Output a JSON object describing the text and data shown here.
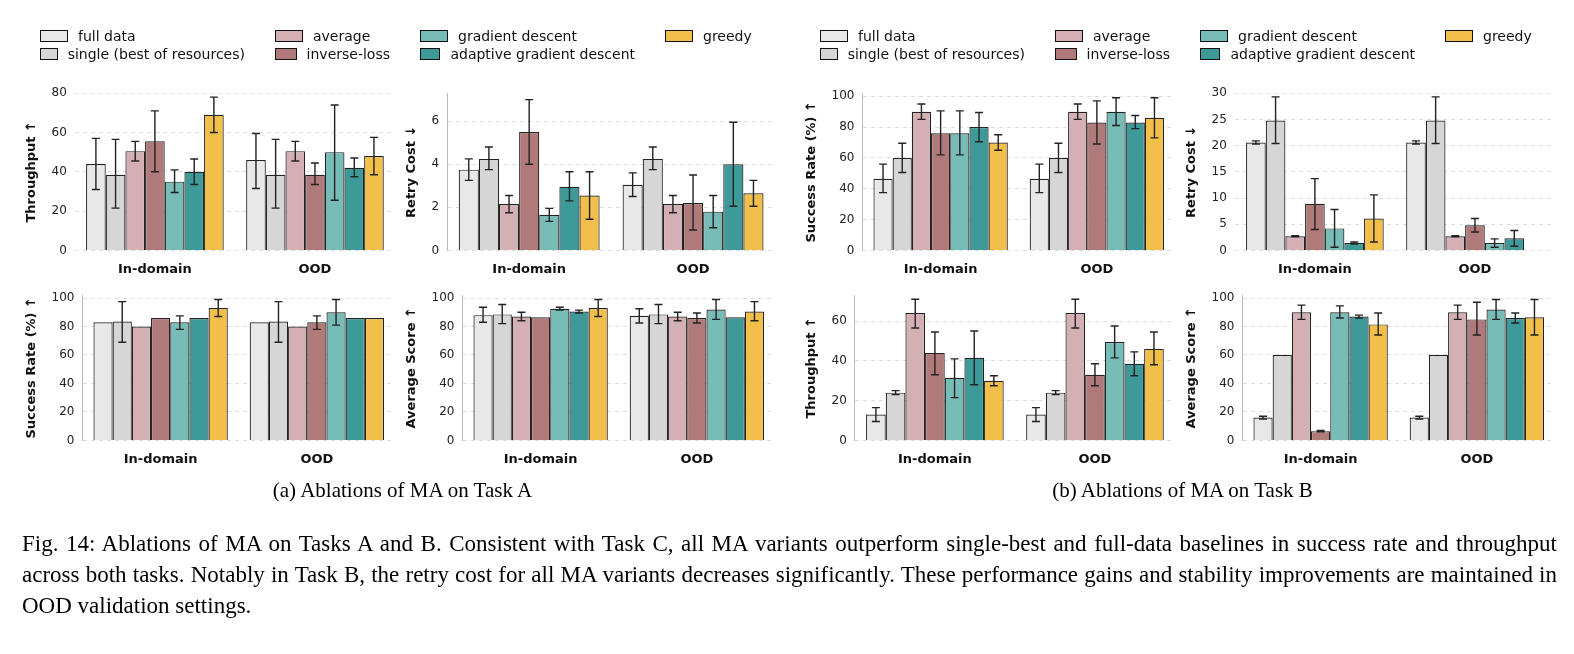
{
  "chart_data": [
    {
      "type": "bar",
      "ylabel": "Throughput ↑",
      "categories": [
        "In-domain",
        "OOD"
      ],
      "ylim": [
        0,
        80
      ],
      "yticks": [
        0,
        20,
        40,
        60,
        80
      ],
      "grid": "y",
      "legend": "top",
      "series": [
        {
          "name": "full data",
          "color": "#e8e8e8",
          "values": [
            44,
            46
          ],
          "errors": [
            [
              31,
              57
            ],
            [
              31.5,
              59.5
            ]
          ]
        },
        {
          "name": "single (best of resources)",
          "color": "#d6d6d6",
          "values": [
            38.5,
            38.5
          ],
          "errors": [
            [
              21.5,
              56.5
            ],
            [
              21.5,
              56.5
            ]
          ]
        },
        {
          "name": "average",
          "color": "#d4b0b4",
          "values": [
            50.5,
            50.5
          ],
          "errors": [
            [
              45.5,
              55.5
            ],
            [
              45.5,
              55.5
            ]
          ]
        },
        {
          "name": "inverse-loss",
          "color": "#b07a7a",
          "values": [
            55.5,
            38.5
          ],
          "errors": [
            [
              40,
              71
            ],
            [
              33.5,
              44.5
            ]
          ]
        },
        {
          "name": "gradient descent",
          "color": "#78bcb8",
          "values": [
            35,
            50
          ],
          "errors": [
            [
              29.5,
              41
            ],
            [
              25.5,
              74
            ]
          ]
        },
        {
          "name": "adaptive gradient descent",
          "color": "#3d9a98",
          "values": [
            40,
            42
          ],
          "errors": [
            [
              33.5,
              46.5
            ],
            [
              37.5,
              47
            ]
          ]
        },
        {
          "name": "greedy",
          "color": "#f2c04a",
          "values": [
            69,
            48
          ],
          "errors": [
            [
              60,
              78
            ],
            [
              38.5,
              57.5
            ]
          ]
        }
      ]
    },
    {
      "type": "bar",
      "ylabel": "Retry Cost ↓",
      "categories": [
        "In-domain",
        "OOD"
      ],
      "ylim": [
        0,
        7.3
      ],
      "yticks": [
        0,
        2,
        4,
        6
      ],
      "grid": "y",
      "series": [
        {
          "color": "#e8e8e8",
          "values": [
            3.75,
            3.05
          ],
          "errors": [
            [
              3.25,
              4.25
            ],
            [
              2.5,
              3.6
            ]
          ]
        },
        {
          "color": "#d6d6d6",
          "values": [
            4.25,
            4.25
          ],
          "errors": [
            [
              3.75,
              4.8
            ],
            [
              3.75,
              4.8
            ]
          ]
        },
        {
          "color": "#d4b0b4",
          "values": [
            2.15,
            2.15
          ],
          "errors": [
            [
              1.75,
              2.55
            ],
            [
              1.75,
              2.55
            ]
          ]
        },
        {
          "color": "#b07a7a",
          "values": [
            5.5,
            2.2
          ],
          "errors": [
            [
              4,
              7
            ],
            [
              0.95,
              3.5
            ]
          ]
        },
        {
          "color": "#78bcb8",
          "values": [
            1.65,
            1.8
          ],
          "errors": [
            [
              1.35,
              1.95
            ],
            [
              1.05,
              2.55
            ]
          ]
        },
        {
          "color": "#3d9a98",
          "values": [
            2.95,
            4
          ],
          "errors": [
            [
              2.3,
              3.65
            ],
            [
              2.05,
              5.95
            ]
          ]
        },
        {
          "color": "#f2c04a",
          "values": [
            2.55,
            2.65
          ],
          "errors": [
            [
              1.45,
              3.65
            ],
            [
              2.05,
              3.25
            ]
          ]
        }
      ]
    },
    {
      "type": "bar",
      "ylabel": "Success Rate (%) ↑",
      "categories": [
        "In-domain",
        "OOD"
      ],
      "ylim": [
        0,
        102
      ],
      "yticks": [
        0,
        20,
        40,
        60,
        80,
        100
      ],
      "grid": "y",
      "annotations": [
        "(a) Ablations of MA on Task A"
      ],
      "series": [
        {
          "color": "#e8e8e8",
          "values": [
            83,
            83
          ],
          "errors": [
            null,
            null
          ]
        },
        {
          "color": "#d6d6d6",
          "values": [
            83.5,
            83.5
          ],
          "errors": [
            [
              69,
              97.5
            ],
            [
              69,
              97.5
            ]
          ]
        },
        {
          "color": "#d4b0b4",
          "values": [
            80,
            80
          ],
          "errors": [
            null,
            null
          ]
        },
        {
          "color": "#b07a7a",
          "values": [
            86,
            83
          ],
          "errors": [
            null,
            [
              78,
              87.5
            ]
          ]
        },
        {
          "color": "#78bcb8",
          "values": [
            83,
            90
          ],
          "errors": [
            [
              78,
              87.5
            ],
            [
              81,
              99
            ]
          ]
        },
        {
          "color": "#3d9a98",
          "values": [
            86,
            86
          ],
          "errors": [
            null,
            null
          ]
        },
        {
          "color": "#f2c04a",
          "values": [
            93,
            86
          ],
          "errors": [
            [
              87,
              99
            ],
            null
          ]
        }
      ]
    },
    {
      "type": "bar",
      "ylabel": "Average Score ↑",
      "categories": [
        "In-domain",
        "OOD"
      ],
      "ylim": [
        0,
        102
      ],
      "yticks": [
        0,
        20,
        40,
        60,
        80,
        100
      ],
      "grid": "y",
      "series": [
        {
          "color": "#e8e8e8",
          "values": [
            88,
            87.5
          ],
          "errors": [
            [
              83,
              93.5
            ],
            [
              82.5,
              92.5
            ]
          ]
        },
        {
          "color": "#d6d6d6",
          "values": [
            88.5,
            88.5
          ],
          "errors": [
            [
              82,
              95.5
            ],
            [
              82,
              95.5
            ]
          ]
        },
        {
          "color": "#d4b0b4",
          "values": [
            87,
            87
          ],
          "errors": [
            [
              84,
              90
            ],
            [
              84,
              90
            ]
          ]
        },
        {
          "color": "#b07a7a",
          "values": [
            86.5,
            86
          ],
          "errors": [
            null,
            [
              82.5,
              89.5
            ]
          ]
        },
        {
          "color": "#78bcb8",
          "values": [
            92.5,
            92
          ],
          "errors": [
            [
              91.5,
              93.5
            ],
            [
              85,
              99
            ]
          ]
        },
        {
          "color": "#3d9a98",
          "values": [
            90.5,
            86.5
          ],
          "errors": [
            [
              89.5,
              91.5
            ],
            null
          ]
        },
        {
          "color": "#f2c04a",
          "values": [
            93,
            90.5
          ],
          "errors": [
            [
              87,
              99
            ],
            [
              84,
              97.5
            ]
          ]
        }
      ]
    },
    {
      "type": "bar",
      "ylabel": "Success Rate (%) ↑",
      "categories": [
        "In-domain",
        "OOD"
      ],
      "ylim": [
        0,
        102
      ],
      "yticks": [
        0,
        20,
        40,
        60,
        80,
        100
      ],
      "grid": "y",
      "legend": "top",
      "series": [
        {
          "name": "full data",
          "color": "#e8e8e8",
          "values": [
            46.5,
            46.5
          ],
          "errors": [
            [
              37.5,
              56
            ],
            [
              37.5,
              56
            ]
          ]
        },
        {
          "name": "single (best of resources)",
          "color": "#d6d6d6",
          "values": [
            60,
            60
          ],
          "errors": [
            [
              50.5,
              69.5
            ],
            [
              50.5,
              69.5
            ]
          ]
        },
        {
          "name": "average",
          "color": "#d4b0b4",
          "values": [
            90,
            90
          ],
          "errors": [
            [
              85,
              95
            ],
            [
              85,
              95
            ]
          ]
        },
        {
          "name": "inverse-loss",
          "color": "#b07a7a",
          "values": [
            76,
            83
          ],
          "errors": [
            [
              62,
              90.5
            ],
            [
              69,
              97
            ]
          ]
        },
        {
          "name": "gradient descent",
          "color": "#78bcb8",
          "values": [
            76,
            90
          ],
          "errors": [
            [
              62,
              90.5
            ],
            [
              81,
              99
            ]
          ]
        },
        {
          "name": "adaptive gradient descent",
          "color": "#3d9a98",
          "values": [
            80,
            83
          ],
          "errors": [
            [
              70.5,
              89.5
            ],
            [
              79,
              87.5
            ]
          ]
        },
        {
          "name": "greedy",
          "color": "#f2c04a",
          "values": [
            70,
            86
          ],
          "errors": [
            [
              65,
              75
            ],
            [
              73,
              99
            ]
          ]
        }
      ]
    },
    {
      "type": "bar",
      "ylabel": "Retry Cost ↓",
      "categories": [
        "In-domain",
        "OOD"
      ],
      "ylim": [
        0,
        30
      ],
      "yticks": [
        0,
        5,
        10,
        15,
        20,
        25,
        30
      ],
      "grid": "y",
      "series": [
        {
          "color": "#e8e8e8",
          "values": [
            20.6,
            20.6
          ],
          "errors": [
            [
              20.3,
              20.9
            ],
            [
              20.3,
              20.9
            ]
          ]
        },
        {
          "color": "#d6d6d6",
          "values": [
            24.8,
            24.8
          ],
          "errors": [
            [
              20.4,
              29.3
            ],
            [
              20.4,
              29.3
            ]
          ]
        },
        {
          "color": "#d4b0b4",
          "values": [
            2.7,
            2.7
          ],
          "errors": [
            [
              2.6,
              2.8
            ],
            [
              2.6,
              2.8
            ]
          ]
        },
        {
          "color": "#b07a7a",
          "values": [
            8.9,
            4.8
          ],
          "errors": [
            [
              4,
              13.7
            ],
            [
              3.5,
              6.1
            ]
          ]
        },
        {
          "color": "#78bcb8",
          "values": [
            4.2,
            1.4
          ],
          "errors": [
            [
              0.6,
              7.8
            ],
            [
              0.6,
              2.2
            ]
          ]
        },
        {
          "color": "#3d9a98",
          "values": [
            1.4,
            2.3
          ],
          "errors": [
            [
              1.2,
              1.6
            ],
            [
              0.8,
              3.8
            ]
          ]
        },
        {
          "color": "#f2c04a",
          "values": [
            6.1,
            0
          ],
          "errors": [
            [
              1.6,
              10.6
            ],
            null
          ]
        }
      ]
    },
    {
      "type": "bar",
      "ylabel": "Throughput ↑",
      "categories": [
        "In-domain",
        "OOD"
      ],
      "ylim": [
        0,
        73
      ],
      "yticks": [
        0,
        20,
        40,
        60
      ],
      "grid": "y",
      "annotations": [
        "(b) Ablations of MA on Task B",
        "Fig. 14: Ablations of MA on Tasks A and B. Consistent with Task C, all MA variants outperform single-best and full-data baselines in success rate and throughput across both tasks. Notably in Task B, the retry cost for all MA variants decreases significantly. These performance gains and stability improvements are maintained in OOD validation settings."
      ],
      "series": [
        {
          "color": "#e8e8e8",
          "values": [
            13,
            13
          ],
          "errors": [
            [
              9.5,
              16.5
            ],
            [
              9.5,
              16.5
            ]
          ]
        },
        {
          "color": "#d6d6d6",
          "values": [
            24,
            24
          ],
          "errors": [
            [
              23,
              25
            ],
            [
              23,
              25
            ]
          ]
        },
        {
          "color": "#d4b0b4",
          "values": [
            64,
            64
          ],
          "errors": [
            [
              56.5,
              71
            ],
            [
              56.5,
              71
            ]
          ]
        },
        {
          "color": "#b07a7a",
          "values": [
            44,
            33
          ],
          "errors": [
            [
              33,
              54.5
            ],
            [
              27.5,
              38.5
            ]
          ]
        },
        {
          "color": "#78bcb8",
          "values": [
            31.5,
            49.5
          ],
          "errors": [
            [
              21.5,
              41
            ],
            [
              41.5,
              57.5
            ]
          ]
        },
        {
          "color": "#3d9a98",
          "values": [
            41.5,
            38.5
          ],
          "errors": [
            [
              28,
              55
            ],
            [
              32.5,
              44.5
            ]
          ]
        },
        {
          "color": "#f2c04a",
          "values": [
            30,
            46
          ],
          "errors": [
            [
              27.5,
              32.5
            ],
            [
              38,
              54.5
            ]
          ]
        }
      ]
    },
    {
      "type": "bar",
      "ylabel": "Average Score ↑",
      "categories": [
        "In-domain",
        "OOD"
      ],
      "ylim": [
        0,
        102
      ],
      "yticks": [
        0,
        20,
        40,
        60,
        80,
        100
      ],
      "grid": "y",
      "series": [
        {
          "color": "#e8e8e8",
          "values": [
            16,
            16
          ],
          "errors": [
            [
              15,
              17
            ],
            [
              15,
              17
            ]
          ]
        },
        {
          "color": "#d6d6d6",
          "values": [
            60,
            60
          ],
          "errors": [
            null,
            null
          ]
        },
        {
          "color": "#d4b0b4",
          "values": [
            90,
            90
          ],
          "errors": [
            [
              85,
              95
            ],
            [
              85,
              95
            ]
          ]
        },
        {
          "color": "#b07a7a",
          "values": [
            6.5,
            85
          ],
          "errors": [
            [
              6,
              7
            ],
            [
              74,
              97
            ]
          ]
        },
        {
          "color": "#78bcb8",
          "values": [
            90,
            92
          ],
          "errors": [
            [
              86,
              94.5
            ],
            [
              85,
              99
            ]
          ]
        },
        {
          "color": "#3d9a98",
          "values": [
            87,
            86
          ],
          "errors": [
            [
              86,
              88
            ],
            [
              82.5,
              89.5
            ]
          ]
        },
        {
          "color": "#f2c04a",
          "values": [
            81.5,
            86.5
          ],
          "errors": [
            [
              74,
              89.5
            ],
            [
              74,
              99
            ]
          ]
        }
      ]
    }
  ]
}
